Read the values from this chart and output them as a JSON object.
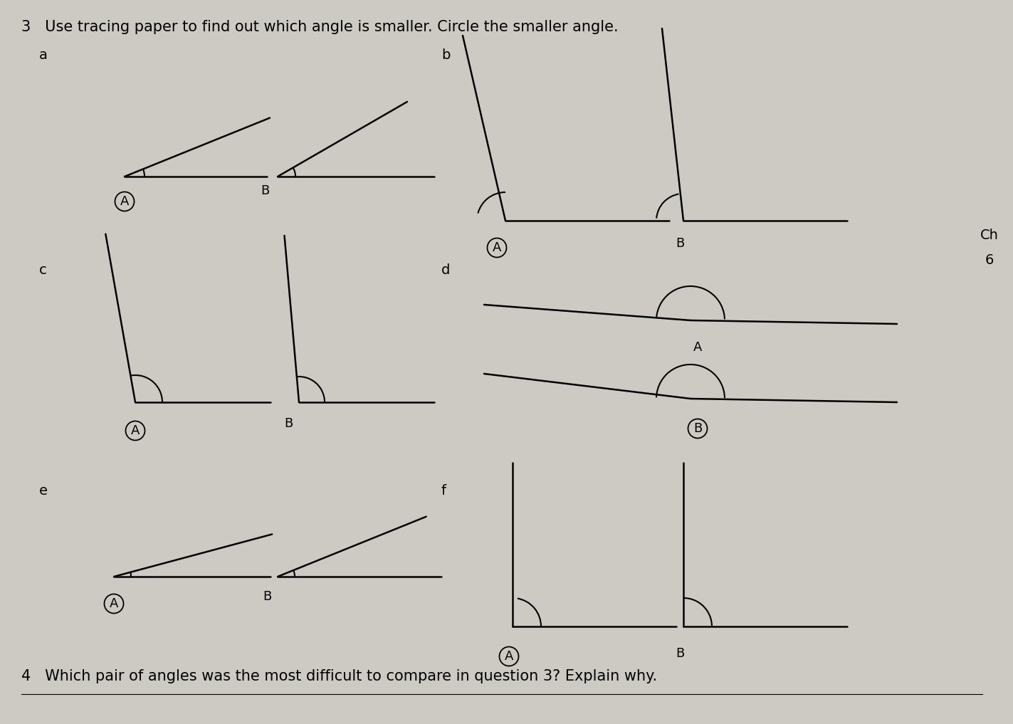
{
  "bg_color": "#cdc9c3",
  "title3": "3   Use tracing paper to find out which angle is smaller. Circle the smaller angle.",
  "title4": "4   Which pair of angles was the most difficult to compare in question 3? Explain why.",
  "Ch_label": "Ch",
  "six_label": "6",
  "font_size_title": 15,
  "font_size_section": 14,
  "font_size_angle": 13
}
